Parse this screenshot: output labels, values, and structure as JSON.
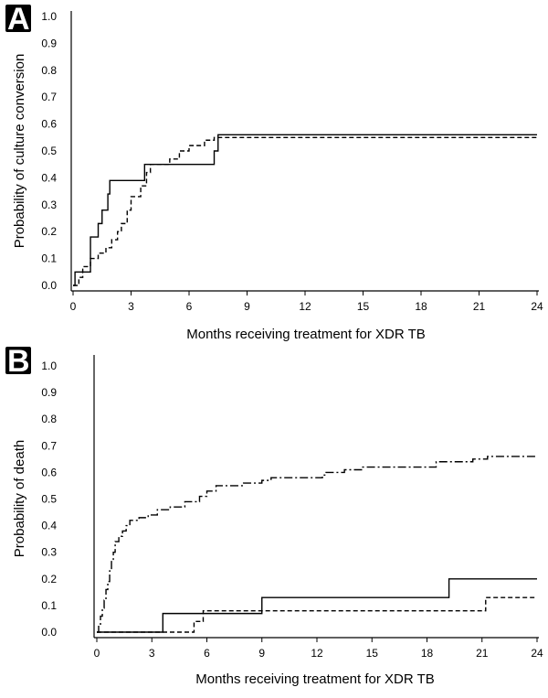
{
  "chart_data": [
    {
      "panel": "A",
      "type": "line",
      "title": "",
      "xlabel": "Months receiving treatment for XDR TB",
      "ylabel": "Probability of culture conversion",
      "xlim": [
        0,
        24
      ],
      "ylim": [
        0,
        1.0
      ],
      "xticks": [
        0,
        3,
        6,
        9,
        12,
        15,
        18,
        21,
        24
      ],
      "yticks": [
        0.0,
        0.1,
        0.2,
        0.3,
        0.4,
        0.5,
        0.6,
        0.7,
        0.8,
        0.9,
        1.0
      ],
      "grid": false,
      "legend": "none",
      "series": [
        {
          "style": "solid",
          "step": true,
          "points": [
            [
              0,
              0.0
            ],
            [
              0.1,
              0.05
            ],
            [
              0.9,
              0.05
            ],
            [
              0.9,
              0.18
            ],
            [
              1.3,
              0.18
            ],
            [
              1.3,
              0.23
            ],
            [
              1.5,
              0.23
            ],
            [
              1.5,
              0.28
            ],
            [
              1.8,
              0.28
            ],
            [
              1.8,
              0.34
            ],
            [
              1.9,
              0.34
            ],
            [
              1.9,
              0.39
            ],
            [
              3.7,
              0.39
            ],
            [
              3.7,
              0.45
            ],
            [
              7.3,
              0.45
            ],
            [
              7.3,
              0.5
            ],
            [
              7.5,
              0.5
            ],
            [
              7.5,
              0.56
            ],
            [
              24,
              0.56
            ]
          ]
        },
        {
          "style": "dashed",
          "step": true,
          "points": [
            [
              0,
              0.0
            ],
            [
              0.3,
              0.0
            ],
            [
              0.3,
              0.03
            ],
            [
              0.5,
              0.03
            ],
            [
              0.5,
              0.07
            ],
            [
              0.9,
              0.07
            ],
            [
              0.9,
              0.1
            ],
            [
              1.3,
              0.1
            ],
            [
              1.3,
              0.12
            ],
            [
              1.7,
              0.12
            ],
            [
              1.7,
              0.14
            ],
            [
              2.0,
              0.14
            ],
            [
              2.0,
              0.17
            ],
            [
              2.3,
              0.17
            ],
            [
              2.3,
              0.2
            ],
            [
              2.5,
              0.2
            ],
            [
              2.5,
              0.23
            ],
            [
              2.8,
              0.23
            ],
            [
              2.8,
              0.28
            ],
            [
              3.0,
              0.28
            ],
            [
              3.0,
              0.33
            ],
            [
              3.5,
              0.33
            ],
            [
              3.5,
              0.37
            ],
            [
              3.8,
              0.37
            ],
            [
              3.8,
              0.42
            ],
            [
              4.0,
              0.42
            ],
            [
              4.0,
              0.45
            ],
            [
              5.0,
              0.45
            ],
            [
              5.0,
              0.47
            ],
            [
              5.5,
              0.47
            ],
            [
              5.5,
              0.5
            ],
            [
              6.0,
              0.5
            ],
            [
              6.0,
              0.52
            ],
            [
              6.8,
              0.52
            ],
            [
              6.8,
              0.54
            ],
            [
              7.3,
              0.54
            ],
            [
              7.3,
              0.55
            ],
            [
              24,
              0.55
            ]
          ]
        }
      ]
    },
    {
      "panel": "B",
      "type": "line",
      "title": "",
      "xlabel": "Months receiving treatment for XDR TB",
      "ylabel": "Probability of death",
      "xlim": [
        0,
        24
      ],
      "ylim": [
        0,
        1.0
      ],
      "xticks": [
        0,
        3,
        6,
        9,
        12,
        15,
        18,
        21,
        24
      ],
      "yticks": [
        0.0,
        0.1,
        0.2,
        0.3,
        0.4,
        0.5,
        0.6,
        0.7,
        0.8,
        0.9,
        1.0
      ],
      "grid": false,
      "legend": "none",
      "series": [
        {
          "style": "dash-dot",
          "step": true,
          "points": [
            [
              0,
              0.0
            ],
            [
              0.1,
              0.03
            ],
            [
              0.2,
              0.06
            ],
            [
              0.3,
              0.09
            ],
            [
              0.4,
              0.12
            ],
            [
              0.5,
              0.16
            ],
            [
              0.6,
              0.19
            ],
            [
              0.7,
              0.23
            ],
            [
              0.8,
              0.27
            ],
            [
              0.9,
              0.3
            ],
            [
              1.0,
              0.34
            ],
            [
              1.2,
              0.36
            ],
            [
              1.4,
              0.38
            ],
            [
              1.6,
              0.4
            ],
            [
              1.8,
              0.42
            ],
            [
              2.3,
              0.43
            ],
            [
              2.8,
              0.44
            ],
            [
              3.3,
              0.46
            ],
            [
              4.0,
              0.47
            ],
            [
              4.8,
              0.49
            ],
            [
              5.6,
              0.51
            ],
            [
              6.0,
              0.53
            ],
            [
              6.5,
              0.55
            ],
            [
              8.0,
              0.56
            ],
            [
              9.0,
              0.57
            ],
            [
              9.5,
              0.58
            ],
            [
              12.3,
              0.59
            ],
            [
              12.5,
              0.6
            ],
            [
              13.5,
              0.61
            ],
            [
              14.5,
              0.62
            ],
            [
              18.5,
              0.64
            ],
            [
              20.5,
              0.65
            ],
            [
              21.3,
              0.66
            ],
            [
              24,
              0.66
            ]
          ]
        },
        {
          "style": "solid",
          "step": true,
          "points": [
            [
              0,
              0.0
            ],
            [
              3.6,
              0.0
            ],
            [
              3.6,
              0.07
            ],
            [
              9.0,
              0.07
            ],
            [
              9.0,
              0.13
            ],
            [
              19.2,
              0.13
            ],
            [
              19.2,
              0.2
            ],
            [
              24,
              0.2
            ]
          ]
        },
        {
          "style": "dashed",
          "step": true,
          "points": [
            [
              0,
              0.0
            ],
            [
              5.3,
              0.0
            ],
            [
              5.3,
              0.04
            ],
            [
              5.8,
              0.04
            ],
            [
              5.8,
              0.08
            ],
            [
              21.2,
              0.08
            ],
            [
              21.2,
              0.13
            ],
            [
              24,
              0.13
            ]
          ]
        }
      ]
    }
  ]
}
